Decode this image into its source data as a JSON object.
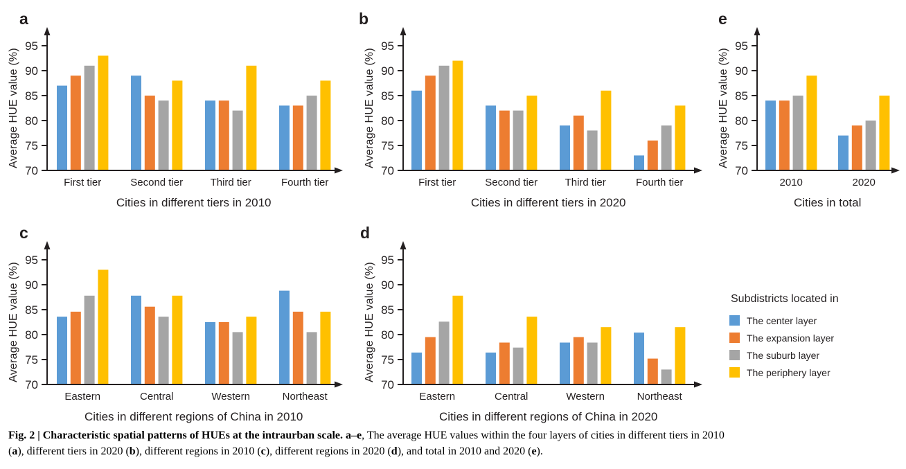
{
  "colors": {
    "center": "#5B9BD5",
    "expansion": "#ED7D31",
    "suburb": "#A5A5A5",
    "periphery": "#FFC000",
    "axis": "#231f20"
  },
  "chart_data": [
    {
      "panel_label": "a",
      "type": "bar",
      "categories": [
        "First tier",
        "Second tier",
        "Third tier",
        "Fourth tier"
      ],
      "series": [
        {
          "name": "The center layer",
          "color": "center",
          "values": [
            87,
            89,
            84,
            83
          ]
        },
        {
          "name": "The expansion layer",
          "color": "expansion",
          "values": [
            89,
            85,
            84,
            83
          ]
        },
        {
          "name": "The suburb layer",
          "color": "suburb",
          "values": [
            91,
            84,
            82,
            85
          ]
        },
        {
          "name": "The periphery layer",
          "color": "periphery",
          "values": [
            93,
            88,
            91,
            88
          ]
        }
      ],
      "xlabel": "Cities in different tiers in 2010",
      "ylabel": "Average HUE value (%)",
      "ylim": [
        70,
        95
      ],
      "yticks": [
        70,
        75,
        80,
        85,
        90,
        95
      ],
      "grid": false
    },
    {
      "panel_label": "b",
      "type": "bar",
      "categories": [
        "First tier",
        "Second tier",
        "Third tier",
        "Fourth tier"
      ],
      "series": [
        {
          "name": "The center layer",
          "color": "center",
          "values": [
            86,
            83,
            79,
            73
          ]
        },
        {
          "name": "The expansion layer",
          "color": "expansion",
          "values": [
            89,
            82,
            81,
            76
          ]
        },
        {
          "name": "The suburb layer",
          "color": "suburb",
          "values": [
            91,
            82,
            78,
            79
          ]
        },
        {
          "name": "The periphery layer",
          "color": "periphery",
          "values": [
            92,
            85,
            86,
            83
          ]
        }
      ],
      "xlabel": "Cities in different tiers in 2020",
      "ylabel": "Average HUE value (%)",
      "ylim": [
        70,
        95
      ],
      "yticks": [
        70,
        75,
        80,
        85,
        90,
        95
      ],
      "grid": false
    },
    {
      "panel_label": "c",
      "type": "bar",
      "categories": [
        "Eastern",
        "Central",
        "Western",
        "Northeast"
      ],
      "series": [
        {
          "name": "The center layer",
          "color": "center",
          "values": [
            83.6,
            87.8,
            82.5,
            88.8
          ]
        },
        {
          "name": "The expansion layer",
          "color": "expansion",
          "values": [
            84.6,
            85.6,
            82.5,
            84.6
          ]
        },
        {
          "name": "The suburb layer",
          "color": "suburb",
          "values": [
            87.8,
            83.6,
            80.5,
            80.5
          ]
        },
        {
          "name": "The periphery layer",
          "color": "periphery",
          "values": [
            93.0,
            87.8,
            83.6,
            84.6
          ]
        }
      ],
      "xlabel": "Cities in different regions of China in 2010",
      "ylabel": "Average HUE value (%)",
      "ylim": [
        70,
        95
      ],
      "yticks": [
        70,
        75,
        80,
        85,
        90,
        95
      ],
      "grid": false
    },
    {
      "panel_label": "d",
      "type": "bar",
      "categories": [
        "Eastern",
        "Central",
        "Western",
        "Northeast"
      ],
      "series": [
        {
          "name": "The center layer",
          "color": "center",
          "values": [
            76.4,
            76.4,
            78.4,
            80.4
          ]
        },
        {
          "name": "The expansion layer",
          "color": "expansion",
          "values": [
            79.5,
            78.4,
            79.5,
            75.2
          ]
        },
        {
          "name": "The suburb layer",
          "color": "suburb",
          "values": [
            82.6,
            77.4,
            78.4,
            73.0
          ]
        },
        {
          "name": "The periphery layer",
          "color": "periphery",
          "values": [
            87.8,
            83.6,
            81.5,
            81.5
          ]
        }
      ],
      "xlabel": "Cities in different regions of China in 2020",
      "ylabel": "Average HUE value (%)",
      "ylim": [
        70,
        95
      ],
      "yticks": [
        70,
        75,
        80,
        85,
        90,
        95
      ],
      "grid": false
    },
    {
      "panel_label": "e",
      "type": "bar",
      "categories": [
        "2010",
        "2020"
      ],
      "series": [
        {
          "name": "The center layer",
          "color": "center",
          "values": [
            84,
            77
          ]
        },
        {
          "name": "The expansion layer",
          "color": "expansion",
          "values": [
            84,
            79
          ]
        },
        {
          "name": "The suburb layer",
          "color": "suburb",
          "values": [
            85,
            80
          ]
        },
        {
          "name": "The periphery layer",
          "color": "periphery",
          "values": [
            89,
            85
          ]
        }
      ],
      "xlabel": "Cities in total",
      "ylabel": "Average HUE value (%)",
      "ylim": [
        70,
        95
      ],
      "yticks": [
        70,
        75,
        80,
        85,
        90,
        95
      ],
      "grid": false
    }
  ],
  "legend": {
    "title": "Subdistricts located in",
    "items": [
      {
        "label": "The center layer",
        "color": "center"
      },
      {
        "label": "The expansion layer",
        "color": "expansion"
      },
      {
        "label": "The suburb layer",
        "color": "suburb"
      },
      {
        "label": "The periphery layer",
        "color": "periphery"
      }
    ]
  },
  "caption": {
    "lines": [
      [
        {
          "text": "Fig. 2 | Characteristic spatial patterns of HUEs at the intraurban scale. a–e",
          "bold": true
        },
        {
          "text": ", The average HUE values within the four layers of cities in different tiers in 2010",
          "bold": false
        }
      ],
      [
        {
          "text": "(",
          "bold": false
        },
        {
          "text": "a",
          "bold": true
        },
        {
          "text": "), different tiers in 2020 (",
          "bold": false
        },
        {
          "text": "b",
          "bold": true
        },
        {
          "text": "), different regions in 2010 (",
          "bold": false
        },
        {
          "text": "c",
          "bold": true
        },
        {
          "text": "), different regions in 2020 (",
          "bold": false
        },
        {
          "text": "d",
          "bold": true
        },
        {
          "text": "), and total in 2010 and 2020 (",
          "bold": false
        },
        {
          "text": "e",
          "bold": true
        },
        {
          "text": ").",
          "bold": false
        }
      ]
    ]
  }
}
